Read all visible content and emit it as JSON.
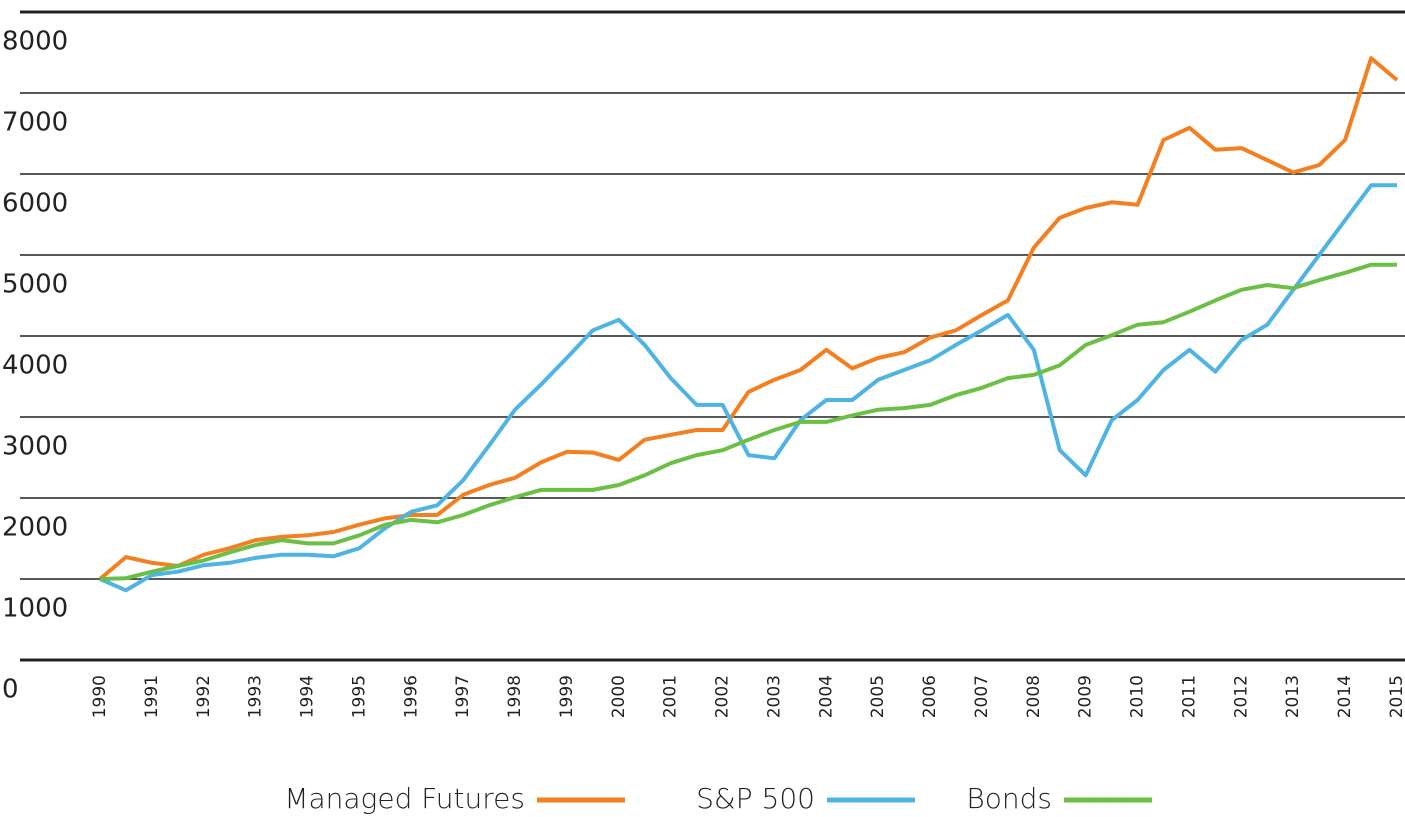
{
  "chart_data": {
    "type": "line",
    "x": [
      1990,
      1990.5,
      1991,
      1991.5,
      1992,
      1992.5,
      1993,
      1993.5,
      1994,
      1994.5,
      1995,
      1995.5,
      1996,
      1996.5,
      1997,
      1997.5,
      1998,
      1998.5,
      1999,
      1999.5,
      2000,
      2000.5,
      2001,
      2001.5,
      2002,
      2002.5,
      2003,
      2003.5,
      2004,
      2004.5,
      2005,
      2005.5,
      2006,
      2006.5,
      2007,
      2007.5,
      2008,
      2008.5,
      2009,
      2009.5,
      2010,
      2010.5,
      2011,
      2011.5,
      2012,
      2012.5,
      2013,
      2013.5,
      2014,
      2014.5,
      2015
    ],
    "series": [
      {
        "name": "Managed Futures",
        "color": "#f47f20",
        "values": [
          1000,
          1270,
          1200,
          1160,
          1300,
          1380,
          1480,
          1520,
          1540,
          1580,
          1670,
          1750,
          1790,
          1790,
          2040,
          2160,
          2250,
          2440,
          2570,
          2560,
          2470,
          2720,
          2780,
          2840,
          2840,
          3310,
          3460,
          3580,
          3830,
          3600,
          3730,
          3800,
          3980,
          4070,
          4260,
          4440,
          5090,
          5460,
          5580,
          5650,
          5620,
          6420,
          6570,
          6300,
          6320,
          6170,
          6020,
          6110,
          6420,
          7430,
          7160
        ]
      },
      {
        "name": "S&P 500",
        "color": "#4fb3e3",
        "values": [
          1000,
          860,
          1050,
          1090,
          1170,
          1200,
          1260,
          1300,
          1300,
          1280,
          1380,
          1630,
          1830,
          1910,
          2220,
          2650,
          3090,
          3400,
          3730,
          4070,
          4200,
          3890,
          3480,
          3150,
          3150,
          2530,
          2490,
          2960,
          3210,
          3210,
          3460,
          3580,
          3700,
          3890,
          4070,
          4260,
          3830,
          2590,
          2280,
          2960,
          3210,
          3580,
          3830,
          3560,
          3950,
          4140,
          4570,
          5000,
          5430,
          5860,
          5860
        ]
      },
      {
        "name": "Bonds",
        "color": "#6cbf45",
        "values": [
          1000,
          1010,
          1090,
          1160,
          1230,
          1330,
          1420,
          1480,
          1440,
          1440,
          1540,
          1670,
          1730,
          1700,
          1790,
          1910,
          2010,
          2100,
          2100,
          2100,
          2160,
          2280,
          2430,
          2530,
          2590,
          2720,
          2840,
          2940,
          2940,
          3020,
          3090,
          3110,
          3150,
          3270,
          3360,
          3480,
          3520,
          3640,
          3890,
          4010,
          4140,
          4170,
          4300,
          4440,
          4570,
          4630,
          4590,
          4690,
          4780,
          4880,
          4880
        ]
      }
    ],
    "xlim": [
      1990,
      2015
    ],
    "xticks": [
      1990,
      1991,
      1992,
      1993,
      1994,
      1995,
      1996,
      1997,
      1998,
      1999,
      2000,
      2001,
      2002,
      2003,
      2004,
      2005,
      2006,
      2007,
      2008,
      2009,
      2010,
      2011,
      2012,
      2013,
      2014,
      2015
    ],
    "ylim": [
      0,
      8000
    ],
    "yticks": [
      0,
      1000,
      2000,
      3000,
      4000,
      5000,
      6000,
      7000,
      8000
    ],
    "grid": true
  }
}
